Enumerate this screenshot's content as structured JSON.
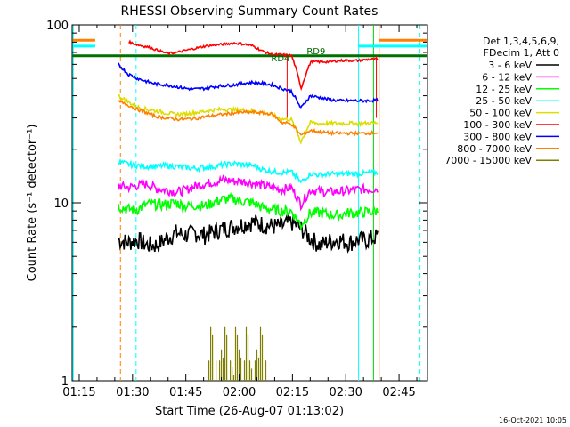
{
  "chart_data": {
    "type": "line",
    "title": "RHESSI Observing Summary Count Rates",
    "xlabel": "Start Time (26-Aug-07 01:13:02)",
    "ylabel": "Count Rate (s⁻¹ detector⁻¹)",
    "x_range_minutes": [
      73,
      173
    ],
    "ylim": [
      1,
      100
    ],
    "yscale": "log",
    "x_ticks": [
      {
        "minute": 75,
        "label": "01:15"
      },
      {
        "minute": 90,
        "label": "01:30"
      },
      {
        "minute": 105,
        "label": "01:45"
      },
      {
        "minute": 120,
        "label": "02:00"
      },
      {
        "minute": 135,
        "label": "02:15"
      },
      {
        "minute": 150,
        "label": "02:30"
      },
      {
        "minute": 165,
        "label": "02:45"
      }
    ],
    "y_ticks": [
      {
        "value": 1,
        "label": "1"
      },
      {
        "value": 10,
        "label": "10"
      },
      {
        "value": 100,
        "label": "100"
      }
    ],
    "legend_header": [
      "Det 1,3,4,5,6,9,",
      "FDecim 1, Att 0"
    ],
    "series": [
      {
        "name": "3 - 6 keV",
        "color": "#000000",
        "t_start": 86,
        "t_end": 159,
        "values": [
          6.2,
          6.0,
          6.2,
          5.8,
          5.8,
          6.3,
          6.8,
          6.6,
          6.8,
          6.6,
          6.9,
          7.2,
          7.4,
          7.6,
          7.8,
          7.6,
          7.4,
          7.4,
          7.8,
          7.2,
          6.3,
          5.8,
          6.1,
          6.2,
          6.0,
          6.2,
          6.2,
          6.5
        ],
        "noise": 0.12
      },
      {
        "name": "6 - 12 keV",
        "color": "#ff00ff",
        "t_start": 86,
        "t_end": 159,
        "values": [
          12.5,
          12.2,
          12.5,
          12.8,
          12.0,
          11.8,
          11.5,
          11.8,
          12.4,
          12.8,
          13.1,
          13.5,
          13.2,
          13.2,
          12.9,
          12.5,
          12.2,
          11.9,
          12.2,
          9.8,
          11.8,
          11.6,
          11.5,
          11.6,
          11.7,
          11.9,
          11.9,
          12.0
        ],
        "noise": 0.06
      },
      {
        "name": "12 - 25 keV",
        "color": "#00ff00",
        "t_start": 86,
        "t_end": 159,
        "values": [
          9.6,
          9.2,
          9.2,
          9.8,
          9.8,
          9.8,
          10.0,
          9.6,
          9.7,
          9.6,
          10.1,
          10.5,
          10.5,
          10.2,
          10.0,
          9.4,
          9.2,
          9.0,
          9.0,
          7.5,
          8.8,
          8.8,
          8.6,
          8.5,
          8.8,
          8.8,
          8.9,
          9.0
        ],
        "noise": 0.07
      },
      {
        "name": "25 - 50 keV",
        "color": "#00ffff",
        "t_start": 86,
        "t_end": 159,
        "values": [
          17.0,
          16.5,
          16.2,
          16.0,
          16.0,
          16.2,
          16.0,
          15.8,
          15.6,
          15.8,
          16.0,
          16.4,
          16.6,
          16.4,
          16.2,
          15.4,
          15.0,
          14.8,
          14.9,
          13.0,
          14.6,
          14.3,
          14.5,
          14.5,
          14.6,
          14.6,
          14.7,
          14.8
        ],
        "noise": 0.035
      },
      {
        "name": "50 - 100 keV",
        "color": "#dddd00",
        "t_start": 86,
        "t_end": 159,
        "values": [
          40.0,
          37.0,
          34.5,
          33.5,
          32.8,
          32.0,
          31.4,
          31.6,
          32.2,
          32.7,
          33.3,
          33.6,
          33.3,
          33.2,
          32.9,
          32.2,
          31.3,
          29.6,
          29.4,
          22.0,
          28.2,
          27.9,
          28.0,
          28.0,
          28.0,
          27.9,
          28.0,
          28.1
        ],
        "noise": 0.025
      },
      {
        "name": "100 - 300 keV",
        "color": "#ff0000",
        "t_start": 89,
        "t_end": 159,
        "values": [
          80.0,
          77.0,
          75.0,
          72.0,
          69.0,
          70.0,
          72.0,
          74.0,
          76.0,
          77.0,
          78.0,
          79.0,
          78.0,
          76.0,
          71.0,
          68.0,
          68.0,
          67.0,
          44.0,
          62.0,
          62.0,
          62.0,
          63.0,
          63.0,
          63.0,
          64.0,
          64.0
        ],
        "noise": 0.015
      },
      {
        "name": "300 - 800 keV",
        "color": "#0000ff",
        "t_start": 86,
        "t_end": 159,
        "values": [
          60.0,
          53.0,
          50.0,
          48.0,
          46.5,
          46.0,
          45.0,
          44.0,
          43.5,
          44.0,
          45.0,
          45.5,
          46.0,
          47.0,
          47.5,
          47.0,
          46.0,
          44.0,
          42.5,
          34.0,
          40.0,
          39.0,
          38.0,
          37.5,
          37.5,
          37.5,
          37.5,
          37.8
        ],
        "noise": 0.02
      },
      {
        "name": "800 - 7000 keV",
        "color": "#ff8000",
        "t_start": 86,
        "t_end": 159,
        "values": [
          37.0,
          35.5,
          33.5,
          32.0,
          30.5,
          30.0,
          29.5,
          29.5,
          29.8,
          30.5,
          31.0,
          31.5,
          32.0,
          32.3,
          32.3,
          32.0,
          31.5,
          28.3,
          27.8,
          24.0,
          25.5,
          25.0,
          24.7,
          24.6,
          24.6,
          24.6,
          24.6,
          24.8
        ],
        "noise": 0.02
      },
      {
        "name": "7000 - 15000 keV",
        "color": "#808000",
        "t_start": 111,
        "t_end": 127,
        "values": [
          1.0,
          2.0,
          1.0,
          1.0,
          1.5,
          2.0,
          1.0,
          1.2,
          2.0,
          1.5,
          1.0,
          2.0,
          1.3,
          1.0,
          1.5,
          2.0,
          1.0
        ],
        "noise": 0
      }
    ],
    "attenuator_labels": [
      {
        "text": "RD4",
        "minute": 135
      },
      {
        "text": "RD9",
        "minute": 140
      }
    ],
    "timestamp": "16-Oct-2021 10:05"
  }
}
